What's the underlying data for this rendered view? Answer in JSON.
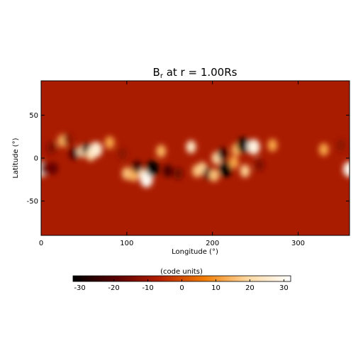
{
  "chart_data": {
    "type": "heatmap",
    "title": "B",
    "title_subscript": "r",
    "title_suffix": " at r = 1.00Rs",
    "xlabel": "Longitude (°)",
    "ylabel": "Latitude (°)",
    "xlim": [
      0,
      360
    ],
    "ylim": [
      -90,
      90
    ],
    "x_ticks": [
      0,
      100,
      200,
      300
    ],
    "y_ticks": [
      -50,
      0,
      50
    ],
    "colorbar": {
      "label": "(code units)",
      "range": [
        -32,
        32
      ],
      "ticks": [
        -30,
        -20,
        -10,
        0,
        10,
        20,
        30
      ],
      "colormap": [
        "#000000",
        "#5a0000",
        "#b52000",
        "#f07a00",
        "#ffd8a0",
        "#ffffff"
      ]
    },
    "background_value": -8,
    "features": [
      {
        "lon": 0,
        "lat": -13,
        "value": 30
      },
      {
        "lon": 4,
        "lat": -12,
        "value": -14
      },
      {
        "lon": 12,
        "lat": 12,
        "value": -14
      },
      {
        "lon": 14,
        "lat": -12,
        "value": -18
      },
      {
        "lon": 25,
        "lat": 20,
        "value": 14
      },
      {
        "lon": 32,
        "lat": 22,
        "value": -12
      },
      {
        "lon": 38,
        "lat": 5,
        "value": -20
      },
      {
        "lon": 48,
        "lat": 8,
        "value": 22
      },
      {
        "lon": 53,
        "lat": 10,
        "value": -24
      },
      {
        "lon": 58,
        "lat": 4,
        "value": 20
      },
      {
        "lon": 64,
        "lat": 10,
        "value": 26
      },
      {
        "lon": 80,
        "lat": 18,
        "value": 12
      },
      {
        "lon": 95,
        "lat": 5,
        "value": -12
      },
      {
        "lon": 100,
        "lat": -18,
        "value": 16
      },
      {
        "lon": 108,
        "lat": -20,
        "value": 14
      },
      {
        "lon": 112,
        "lat": -10,
        "value": -22
      },
      {
        "lon": 120,
        "lat": -20,
        "value": 22
      },
      {
        "lon": 123,
        "lat": -25,
        "value": 30
      },
      {
        "lon": 130,
        "lat": -12,
        "value": -32
      },
      {
        "lon": 140,
        "lat": 8,
        "value": 14
      },
      {
        "lon": 148,
        "lat": -15,
        "value": -22
      },
      {
        "lon": 160,
        "lat": -18,
        "value": -16
      },
      {
        "lon": 175,
        "lat": 13,
        "value": 24
      },
      {
        "lon": 182,
        "lat": -15,
        "value": 16
      },
      {
        "lon": 188,
        "lat": -12,
        "value": 18
      },
      {
        "lon": 195,
        "lat": -18,
        "value": -20
      },
      {
        "lon": 202,
        "lat": -20,
        "value": 16
      },
      {
        "lon": 205,
        "lat": 0,
        "value": 20
      },
      {
        "lon": 212,
        "lat": 5,
        "value": -24
      },
      {
        "lon": 215,
        "lat": -13,
        "value": -32
      },
      {
        "lon": 225,
        "lat": -5,
        "value": 12
      },
      {
        "lon": 228,
        "lat": 10,
        "value": 14
      },
      {
        "lon": 236,
        "lat": 15,
        "value": -30
      },
      {
        "lon": 238,
        "lat": -15,
        "value": 18
      },
      {
        "lon": 248,
        "lat": 13,
        "value": 28
      },
      {
        "lon": 255,
        "lat": -8,
        "value": -14
      },
      {
        "lon": 270,
        "lat": 15,
        "value": 12
      },
      {
        "lon": 330,
        "lat": 10,
        "value": 12
      },
      {
        "lon": 350,
        "lat": 15,
        "value": -12
      },
      {
        "lon": 360,
        "lat": -13,
        "value": 30
      }
    ]
  }
}
